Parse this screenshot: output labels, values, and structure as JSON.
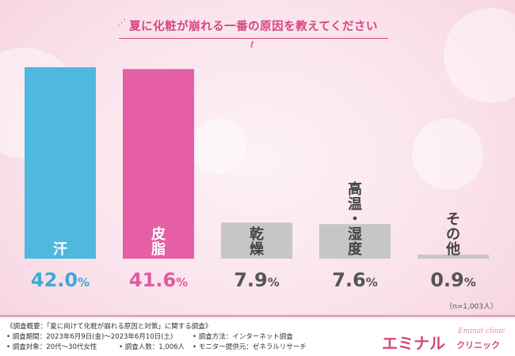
{
  "title": "夏に化粧が崩れる一番の原因を教えてください",
  "sample_note": "（n=1,003人）",
  "colors": {
    "accent": "#d6467f",
    "bar_blue": "#4fb8df",
    "bar_pink": "#e65ea6",
    "bar_gray": "#c6c6c6"
  },
  "chart_data": {
    "type": "bar",
    "categories": [
      "汗",
      "皮脂",
      "乾燥",
      "高温・湿度",
      "その他"
    ],
    "values": [
      42.0,
      41.6,
      7.9,
      7.6,
      0.9
    ],
    "value_labels": [
      "42.0%",
      "41.6%",
      "7.9%",
      "7.6%",
      "0.9%"
    ],
    "bar_colors": [
      "#4fb8df",
      "#e65ea6",
      "#c6c6c6",
      "#c6c6c6",
      "#c6c6c6"
    ],
    "ylim": [
      0,
      42.0
    ],
    "grid": false,
    "legend": "none"
  },
  "footer": {
    "overview": "《調査概要：「夏に向けて化粧が崩れる原因と対策」に関する調査》",
    "period": "• 調査期間：2023年6月9日(金)〜2023年6月10日(土)",
    "method": "• 調査方法：インターネット調査",
    "target": "• 調査対象：20代〜30代女性",
    "count": "• 調査人数：1,006人",
    "provider": "• モニター提供元：ゼネラルリサーチ"
  },
  "brand": {
    "name": "エミナル",
    "sub": "クリニック",
    "script": "Eminal clinic"
  }
}
